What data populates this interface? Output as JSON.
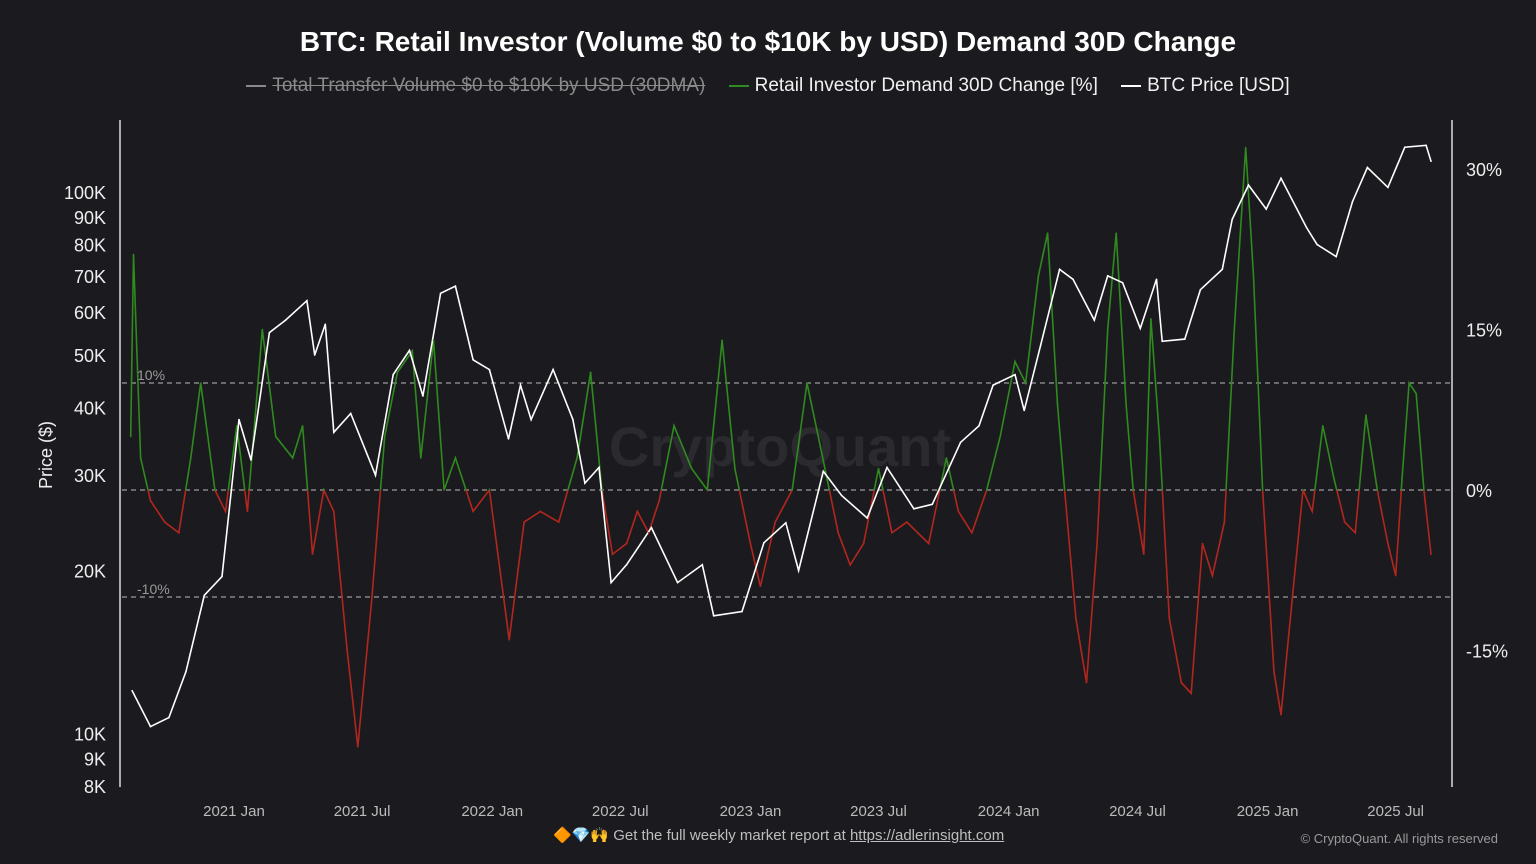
{
  "chart_data": {
    "type": "line",
    "title": "BTC: Retail Investor (Volume $0 to $10K by USD) Demand 30D Change",
    "legend": [
      {
        "name": "Total Transfer Volume $0 to $10K by USD (30DMA)",
        "color": "#8a8a8a",
        "hidden": true
      },
      {
        "name": "Retail Investor Demand 30D Change [%]",
        "color": "#2f8a1f"
      },
      {
        "name": "BTC Price [USD]",
        "color": "#ffffff"
      }
    ],
    "ylabel_left": "Price ($)",
    "left_axis": {
      "scale": "log",
      "range": [
        8000,
        130000
      ],
      "ticks": [
        8000,
        9000,
        10000,
        20000,
        30000,
        40000,
        50000,
        60000,
        70000,
        80000,
        90000,
        100000
      ],
      "tick_labels": [
        "8K",
        "9K",
        "10K",
        "20K",
        "30K",
        "40K",
        "50K",
        "60K",
        "70K",
        "80K",
        "90K",
        "100K"
      ]
    },
    "right_axis": {
      "range": [
        -27,
        34
      ],
      "ticks": [
        30,
        15,
        0,
        -15
      ],
      "tick_labels": [
        "30%",
        "15%",
        "0%",
        "-15%"
      ]
    },
    "reference_lines": [
      {
        "value": 10,
        "label": "10%"
      },
      {
        "value": 0,
        "label": ""
      },
      {
        "value": -10,
        "label": "-10%"
      }
    ],
    "x_ticks": [
      "2021-01-01",
      "2021-07-01",
      "2022-01-01",
      "2022-07-01",
      "2023-01-01",
      "2023-07-01",
      "2024-01-01",
      "2024-07-01",
      "2025-01-01",
      "2025-07-01"
    ],
    "x_tick_labels": [
      "2021 Jan",
      "2021 Jul",
      "2022 Jan",
      "2022 Jul",
      "2023 Jan",
      "2023 Jul",
      "2024 Jan",
      "2024 Jul",
      "2025 Jan",
      "2025 Jul"
    ],
    "positive_color": "#2f8a1f",
    "negative_color": "#b3261e",
    "btc_price": [
      [
        "2020-08-10",
        12000
      ],
      [
        "2020-09-05",
        10300
      ],
      [
        "2020-10-01",
        10700
      ],
      [
        "2020-10-25",
        13000
      ],
      [
        "2020-11-20",
        18000
      ],
      [
        "2020-12-15",
        19500
      ],
      [
        "2021-01-08",
        38000
      ],
      [
        "2021-01-25",
        32000
      ],
      [
        "2021-02-20",
        55000
      ],
      [
        "2021-03-15",
        58000
      ],
      [
        "2021-04-14",
        63000
      ],
      [
        "2021-04-25",
        50000
      ],
      [
        "2021-05-10",
        57000
      ],
      [
        "2021-05-22",
        36000
      ],
      [
        "2021-06-15",
        39000
      ],
      [
        "2021-07-20",
        30000
      ],
      [
        "2021-08-14",
        46000
      ],
      [
        "2021-09-06",
        51000
      ],
      [
        "2021-09-25",
        42000
      ],
      [
        "2021-10-20",
        65000
      ],
      [
        "2021-11-10",
        67000
      ],
      [
        "2021-12-05",
        49000
      ],
      [
        "2021-12-28",
        47000
      ],
      [
        "2022-01-24",
        35000
      ],
      [
        "2022-02-10",
        44000
      ],
      [
        "2022-02-25",
        38000
      ],
      [
        "2022-03-28",
        47000
      ],
      [
        "2022-04-25",
        38000
      ],
      [
        "2022-05-12",
        29000
      ],
      [
        "2022-06-01",
        31000
      ],
      [
        "2022-06-18",
        19000
      ],
      [
        "2022-07-10",
        20500
      ],
      [
        "2022-08-14",
        24000
      ],
      [
        "2022-09-20",
        19000
      ],
      [
        "2022-10-25",
        20500
      ],
      [
        "2022-11-10",
        16500
      ],
      [
        "2022-12-20",
        16800
      ],
      [
        "2023-01-20",
        22500
      ],
      [
        "2023-02-20",
        24500
      ],
      [
        "2023-03-10",
        20000
      ],
      [
        "2023-04-14",
        30500
      ],
      [
        "2023-05-10",
        27500
      ],
      [
        "2023-06-15",
        25000
      ],
      [
        "2023-07-13",
        31000
      ],
      [
        "2023-08-20",
        26000
      ],
      [
        "2023-09-15",
        26500
      ],
      [
        "2023-10-25",
        34500
      ],
      [
        "2023-11-20",
        37000
      ],
      [
        "2023-12-10",
        44000
      ],
      [
        "2024-01-10",
        46000
      ],
      [
        "2024-01-23",
        39500
      ],
      [
        "2024-02-15",
        52000
      ],
      [
        "2024-03-13",
        72000
      ],
      [
        "2024-04-01",
        69000
      ],
      [
        "2024-05-01",
        58000
      ],
      [
        "2024-05-20",
        70000
      ],
      [
        "2024-06-10",
        68000
      ],
      [
        "2024-07-05",
        56000
      ],
      [
        "2024-07-28",
        69000
      ],
      [
        "2024-08-05",
        53000
      ],
      [
        "2024-09-06",
        53500
      ],
      [
        "2024-09-28",
        66000
      ],
      [
        "2024-10-29",
        72000
      ],
      [
        "2024-11-12",
        89000
      ],
      [
        "2024-12-05",
        103000
      ],
      [
        "2024-12-30",
        93000
      ],
      [
        "2025-01-20",
        106000
      ],
      [
        "2025-02-25",
        86000
      ],
      [
        "2025-03-12",
        80000
      ],
      [
        "2025-04-08",
        76000
      ],
      [
        "2025-05-01",
        96000
      ],
      [
        "2025-05-22",
        111000
      ],
      [
        "2025-06-20",
        102000
      ],
      [
        "2025-07-14",
        121000
      ],
      [
        "2025-08-13",
        122000
      ],
      [
        "2025-08-20",
        114000
      ]
    ],
    "demand_change_pct": [
      [
        "2020-08-08",
        5
      ],
      [
        "2020-08-12",
        22
      ],
      [
        "2020-08-22",
        3
      ],
      [
        "2020-09-05",
        -1
      ],
      [
        "2020-09-25",
        -3
      ],
      [
        "2020-10-15",
        -4
      ],
      [
        "2020-11-01",
        3
      ],
      [
        "2020-11-15",
        10
      ],
      [
        "2020-12-05",
        0
      ],
      [
        "2020-12-20",
        -2
      ],
      [
        "2021-01-05",
        6
      ],
      [
        "2021-01-20",
        -2
      ],
      [
        "2021-02-10",
        15
      ],
      [
        "2021-03-01",
        5
      ],
      [
        "2021-03-25",
        3
      ],
      [
        "2021-04-08",
        6
      ],
      [
        "2021-04-22",
        -6
      ],
      [
        "2021-05-08",
        0
      ],
      [
        "2021-05-22",
        -2
      ],
      [
        "2021-06-10",
        -15
      ],
      [
        "2021-06-25",
        -24
      ],
      [
        "2021-07-15",
        -10
      ],
      [
        "2021-08-02",
        5
      ],
      [
        "2021-08-20",
        11
      ],
      [
        "2021-09-10",
        13
      ],
      [
        "2021-09-22",
        3
      ],
      [
        "2021-10-10",
        14
      ],
      [
        "2021-10-25",
        0
      ],
      [
        "2021-11-10",
        3
      ],
      [
        "2021-12-05",
        -2
      ],
      [
        "2021-12-28",
        0
      ],
      [
        "2022-01-25",
        -14
      ],
      [
        "2022-02-15",
        -3
      ],
      [
        "2022-03-10",
        -2
      ],
      [
        "2022-04-05",
        -3
      ],
      [
        "2022-05-01",
        3
      ],
      [
        "2022-05-20",
        11
      ],
      [
        "2022-06-05",
        0
      ],
      [
        "2022-06-20",
        -6
      ],
      [
        "2022-07-10",
        -5
      ],
      [
        "2022-07-25",
        -2
      ],
      [
        "2022-08-10",
        -4
      ],
      [
        "2022-08-25",
        -1
      ],
      [
        "2022-09-15",
        6
      ],
      [
        "2022-10-10",
        2
      ],
      [
        "2022-11-01",
        0
      ],
      [
        "2022-11-22",
        14
      ],
      [
        "2022-12-10",
        2
      ],
      [
        "2023-01-01",
        -5
      ],
      [
        "2023-01-15",
        -9
      ],
      [
        "2023-02-05",
        -3
      ],
      [
        "2023-03-01",
        0
      ],
      [
        "2023-03-22",
        10
      ],
      [
        "2023-04-10",
        4
      ],
      [
        "2023-05-05",
        -4
      ],
      [
        "2023-05-22",
        -7
      ],
      [
        "2023-06-10",
        -5
      ],
      [
        "2023-07-01",
        2
      ],
      [
        "2023-07-20",
        -4
      ],
      [
        "2023-08-10",
        -3
      ],
      [
        "2023-09-10",
        -5
      ],
      [
        "2023-10-05",
        3
      ],
      [
        "2023-10-22",
        -2
      ],
      [
        "2023-11-10",
        -4
      ],
      [
        "2023-12-01",
        0
      ],
      [
        "2023-12-20",
        5
      ],
      [
        "2024-01-10",
        12
      ],
      [
        "2024-01-25",
        10
      ],
      [
        "2024-02-12",
        20
      ],
      [
        "2024-02-25",
        24
      ],
      [
        "2024-03-10",
        8
      ],
      [
        "2024-03-20",
        0
      ],
      [
        "2024-04-05",
        -12
      ],
      [
        "2024-04-20",
        -18
      ],
      [
        "2024-05-05",
        -5
      ],
      [
        "2024-05-20",
        15
      ],
      [
        "2024-06-01",
        24
      ],
      [
        "2024-06-15",
        8
      ],
      [
        "2024-06-25",
        0
      ],
      [
        "2024-07-10",
        -6
      ],
      [
        "2024-07-20",
        16
      ],
      [
        "2024-08-01",
        5
      ],
      [
        "2024-08-15",
        -12
      ],
      [
        "2024-09-01",
        -18
      ],
      [
        "2024-09-15",
        -19
      ],
      [
        "2024-10-01",
        -5
      ],
      [
        "2024-10-15",
        -8
      ],
      [
        "2024-11-01",
        -3
      ],
      [
        "2024-11-15",
        15
      ],
      [
        "2024-12-01",
        32
      ],
      [
        "2024-12-12",
        20
      ],
      [
        "2024-12-25",
        0
      ],
      [
        "2025-01-10",
        -17
      ],
      [
        "2025-01-20",
        -21
      ],
      [
        "2025-02-05",
        -10
      ],
      [
        "2025-02-20",
        0
      ],
      [
        "2025-03-05",
        -2
      ],
      [
        "2025-03-20",
        6
      ],
      [
        "2025-04-05",
        1
      ],
      [
        "2025-04-20",
        -3
      ],
      [
        "2025-05-05",
        -4
      ],
      [
        "2025-05-20",
        7
      ],
      [
        "2025-06-05",
        0
      ],
      [
        "2025-06-20",
        -5
      ],
      [
        "2025-07-01",
        -8
      ],
      [
        "2025-07-10",
        1
      ],
      [
        "2025-07-20",
        10
      ],
      [
        "2025-07-30",
        9
      ],
      [
        "2025-08-10",
        0
      ],
      [
        "2025-08-20",
        -6
      ]
    ]
  },
  "watermark": "CryptoQuant",
  "footer": {
    "emoji": "🔶💎🙌",
    "text": "Get the full weekly market report at ",
    "link": "https://adlerinsight.com",
    "copyright": "© CryptoQuant. All rights reserved"
  }
}
